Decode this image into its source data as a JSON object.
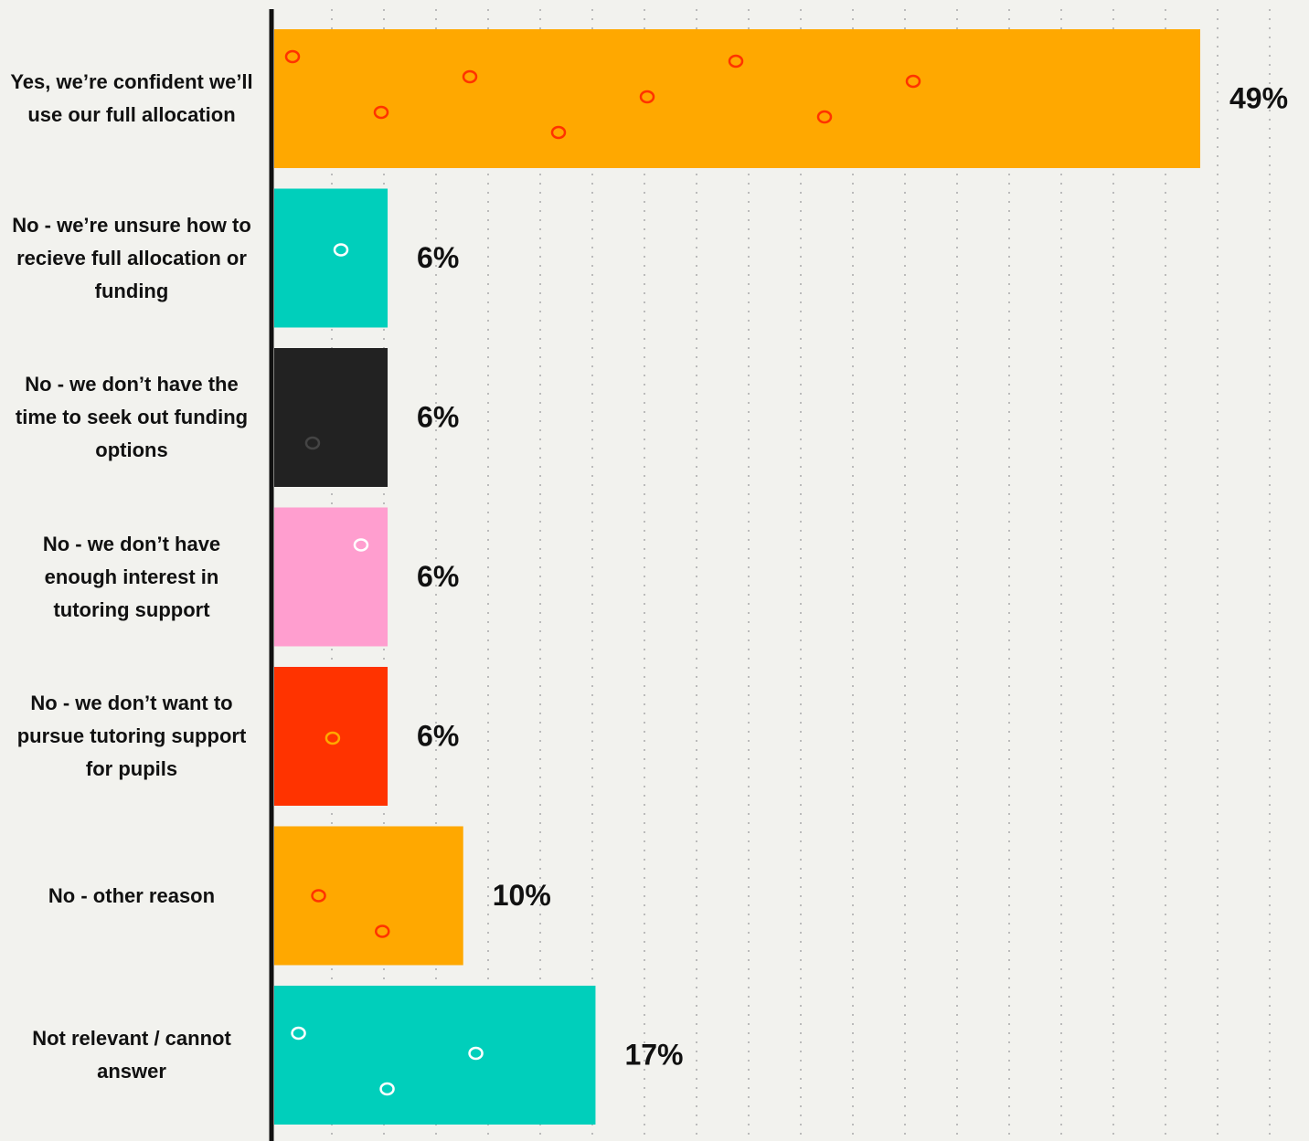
{
  "chart_data": {
    "type": "bar",
    "orientation": "horizontal",
    "categories": [
      "Yes, we’re confident we’ll use our full allocation",
      "No - we’re unsure how to recieve full allocation or funding",
      "No - we don’t have the time to seek out funding options",
      "No - we don’t have enough interest in tutoring support",
      "No - we don’t want to pursue tutoring support for pupils",
      "No - other reason",
      "Not relevant / cannot answer"
    ],
    "values": [
      49,
      6,
      6,
      6,
      6,
      10,
      17
    ],
    "value_labels": [
      "49%",
      "6%",
      "6%",
      "6%",
      "6%",
      "10%",
      "17%"
    ],
    "colors": [
      "#ffa800",
      "#00cfbb",
      "#222222",
      "#ff9ecf",
      "#ff3300",
      "#ffa800",
      "#00cfbb"
    ]
  }
}
